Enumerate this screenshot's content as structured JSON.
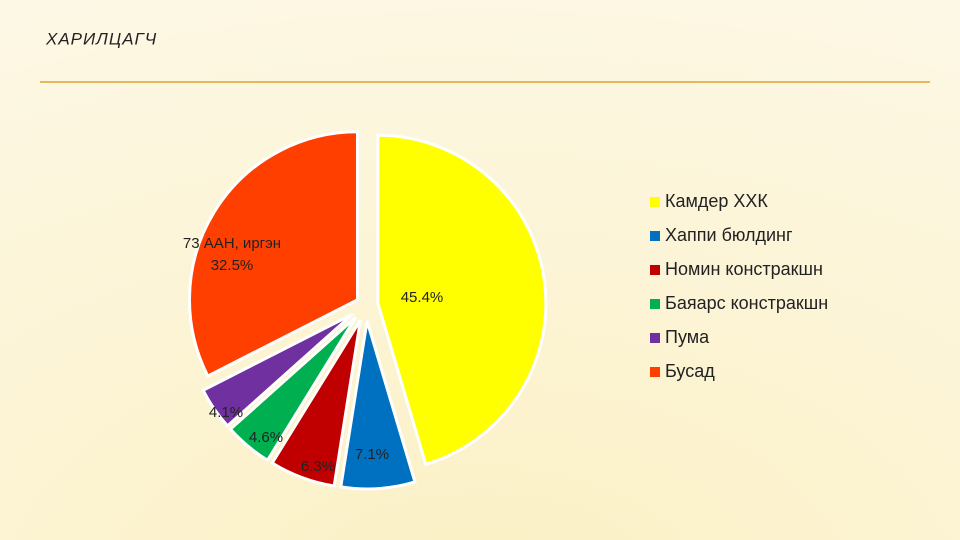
{
  "chart_data": {
    "type": "pie",
    "title": "ХАРИЛЦАГЧ",
    "categories": [
      "Камдер ХХК",
      "Хаппи бюлдинг",
      "Номин констракшн",
      "Баяарс констракшн",
      "Пума",
      "Бусад"
    ],
    "values": [
      45.4,
      7.1,
      6.3,
      4.6,
      4.1,
      32.5
    ],
    "value_labels": [
      "45.4%",
      "7.1%",
      "6.3%",
      "4.6%",
      "4.1%",
      "32.5%"
    ],
    "colors": [
      "#ffff00",
      "#0070c0",
      "#c00000",
      "#00b050",
      "#7030a0",
      "#ff3f00"
    ],
    "annotations": [
      "73 ААН, иргэн"
    ],
    "legend": "right"
  }
}
